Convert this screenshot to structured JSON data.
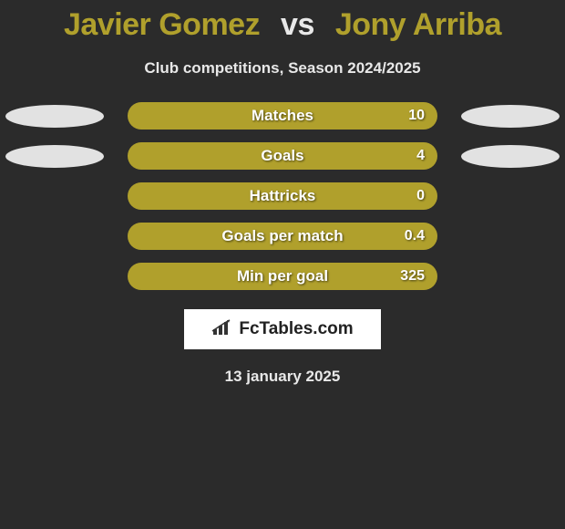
{
  "title": {
    "player1": "Javier Gomez",
    "vs": "vs",
    "player2": "Jony Arriba",
    "player1_color": "#b0a02c",
    "vs_color": "#e8e8e8",
    "player2_color": "#b0a02c"
  },
  "subtitle": "Club competitions, Season 2024/2025",
  "background_color": "#2b2b2b",
  "ellipse_color": "#e2e2e2",
  "rows": [
    {
      "label": "Matches",
      "value": "10",
      "bar_color": "#b0a02c",
      "show_ellipses": true
    },
    {
      "label": "Goals",
      "value": "4",
      "bar_color": "#b0a02c",
      "show_ellipses": true
    },
    {
      "label": "Hattricks",
      "value": "0",
      "bar_color": "#b0a02c",
      "show_ellipses": false
    },
    {
      "label": "Goals per match",
      "value": "0.4",
      "bar_color": "#b0a02c",
      "show_ellipses": false
    },
    {
      "label": "Min per goal",
      "value": "325",
      "bar_color": "#b0a02c",
      "show_ellipses": false
    }
  ],
  "logo": {
    "text": "FcTables.com",
    "icon_name": "bar-chart-icon"
  },
  "date": "13 january 2025"
}
